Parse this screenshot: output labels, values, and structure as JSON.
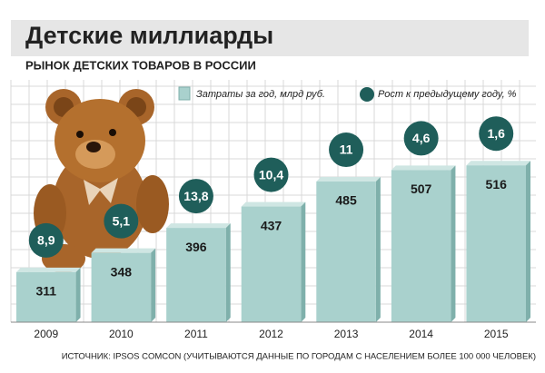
{
  "chart_data": {
    "type": "bar",
    "title": "Детские миллиарды",
    "subtitle": "РЫНОК ДЕТСКИХ ТОВАРОВ В РОССИИ",
    "categories": [
      "2009",
      "2010",
      "2011",
      "2012",
      "2013",
      "2014",
      "2015"
    ],
    "series": [
      {
        "name": "Затраты за год, млрд руб.",
        "color": "#a9d1cd",
        "values": [
          311,
          348,
          396,
          437,
          485,
          507,
          516
        ]
      },
      {
        "name": "Рост к предыдущему году, %",
        "color": "#1f5e5a",
        "values": [
          8.9,
          5.1,
          13.8,
          10.4,
          11,
          4.6,
          1.6
        ],
        "value_labels": [
          "8,9",
          "5,1",
          "13,8",
          "10,4",
          "11",
          "4,6",
          "1,6"
        ]
      }
    ],
    "ylim": [
      215,
      600
    ],
    "source": "ИСТОЧНИК: IPSOS COMCON (УЧИТЫВАЮТСЯ ДАННЫЕ ПО ГОРОДАМ С НАСЕЛЕНИЕМ БОЛЕЕ 100 000 ЧЕЛОВЕК)"
  }
}
